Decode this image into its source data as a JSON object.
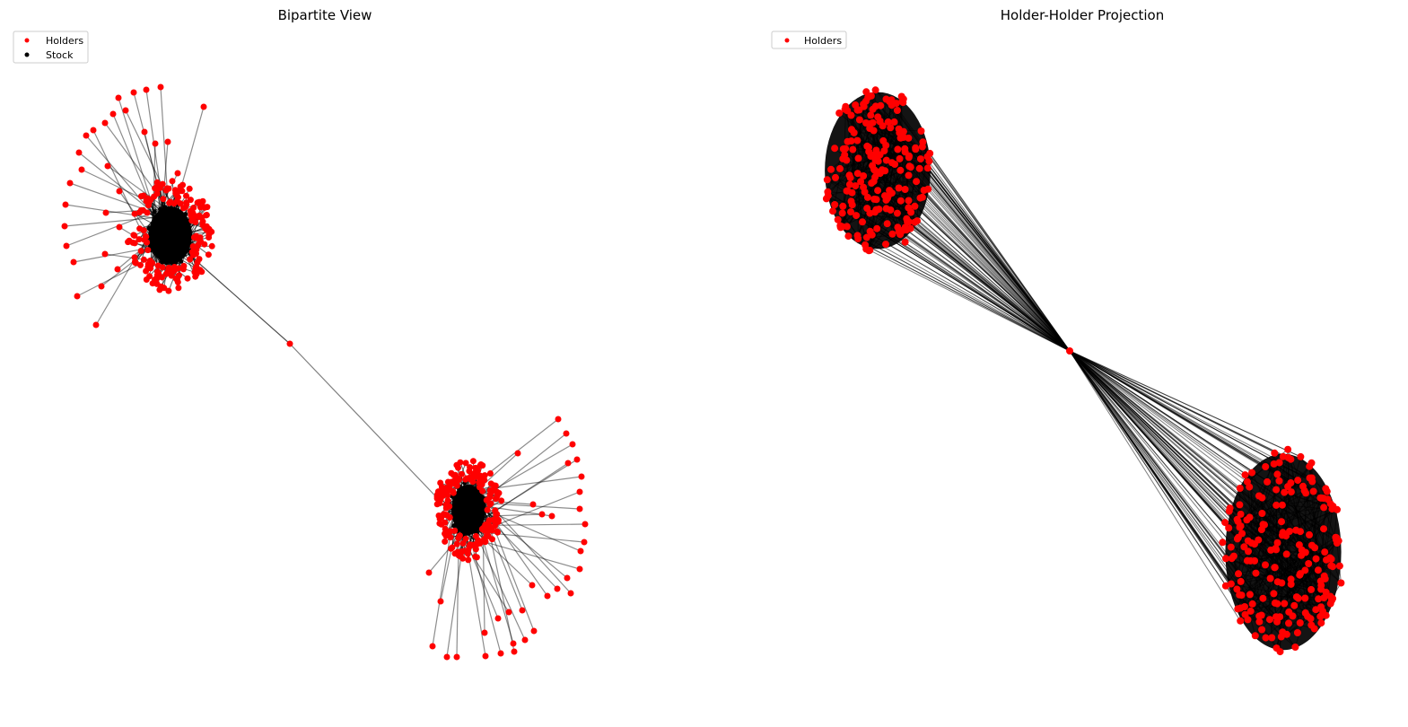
{
  "figure": {
    "panels": [
      {
        "id": "bipartite",
        "title": "Bipartite View",
        "legend": [
          {
            "label": "Holders",
            "color": "#ff0000"
          },
          {
            "label": "Stock",
            "color": "#000000"
          }
        ]
      },
      {
        "id": "projection",
        "title": "Holder-Holder Projection",
        "legend": [
          {
            "label": "Holders",
            "color": "#ff0000"
          }
        ]
      }
    ],
    "colors": {
      "holder_node": "#ff0000",
      "stock_node": "#000000",
      "edge": "#000000"
    }
  }
}
